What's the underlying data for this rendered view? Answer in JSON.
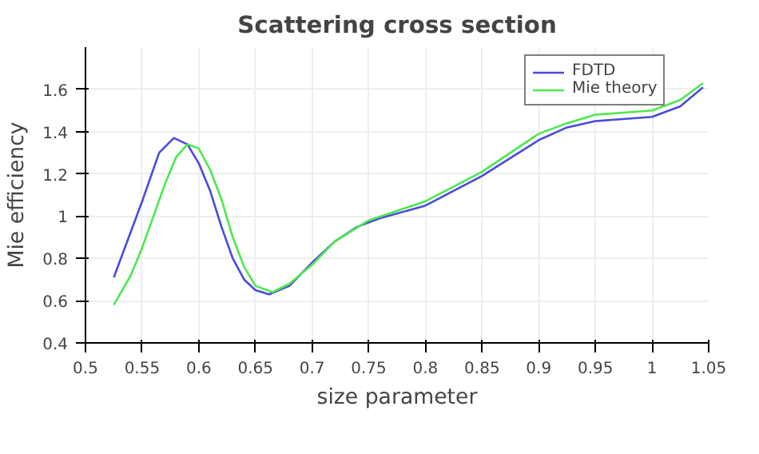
{
  "chart_data": {
    "type": "line",
    "title": "Scattering cross section",
    "xlabel": "size parameter",
    "ylabel": "Mie efficiency",
    "xlim": [
      0.5,
      1.05
    ],
    "ylim": [
      0.4,
      1.8
    ],
    "xticks": [
      0.5,
      0.55,
      0.6,
      0.65,
      0.7,
      0.75,
      0.8,
      0.85,
      0.9,
      0.95,
      1,
      1.05
    ],
    "yticks": [
      0.4,
      0.6,
      0.8,
      1,
      1.2,
      1.4,
      1.6
    ],
    "grid": true,
    "legend": "top right",
    "line_style": "solid",
    "marker": "none",
    "series": [
      {
        "name": "FDTD",
        "color": "#4a4ae0",
        "x": [
          0.525,
          0.55,
          0.565,
          0.578,
          0.59,
          0.6,
          0.61,
          0.62,
          0.63,
          0.64,
          0.65,
          0.662,
          0.68,
          0.7,
          0.72,
          0.74,
          0.76,
          0.8,
          0.85,
          0.9,
          0.925,
          0.95,
          1.0,
          1.025,
          1.045
        ],
        "values": [
          0.71,
          1.07,
          1.3,
          1.37,
          1.34,
          1.25,
          1.12,
          0.95,
          0.8,
          0.7,
          0.65,
          0.63,
          0.67,
          0.78,
          0.88,
          0.95,
          0.99,
          1.05,
          1.19,
          1.36,
          1.42,
          1.45,
          1.47,
          1.52,
          1.61
        ]
      },
      {
        "name": "Mie theory",
        "color": "#4ce84c",
        "x": [
          0.525,
          0.54,
          0.55,
          0.57,
          0.58,
          0.59,
          0.6,
          0.61,
          0.62,
          0.63,
          0.64,
          0.65,
          0.665,
          0.68,
          0.7,
          0.72,
          0.75,
          0.8,
          0.85,
          0.9,
          0.925,
          0.95,
          1.0,
          1.025,
          1.045
        ],
        "values": [
          0.58,
          0.72,
          0.85,
          1.15,
          1.28,
          1.34,
          1.32,
          1.22,
          1.08,
          0.9,
          0.76,
          0.67,
          0.64,
          0.68,
          0.77,
          0.88,
          0.98,
          1.07,
          1.21,
          1.39,
          1.44,
          1.48,
          1.5,
          1.55,
          1.63
        ]
      }
    ]
  }
}
